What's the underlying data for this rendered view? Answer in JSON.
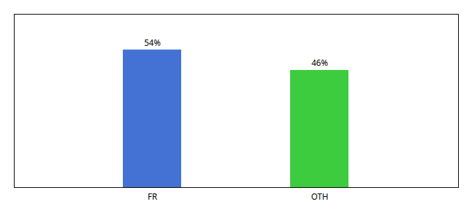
{
  "chart_data": {
    "type": "bar",
    "categories": [
      "FR",
      "OTH"
    ],
    "values": [
      54,
      46
    ],
    "value_labels": [
      "54%",
      "46%"
    ],
    "colors": [
      "#4472d4",
      "#3dcc3d"
    ],
    "ylim": [
      0,
      68
    ],
    "data_labels": true,
    "tick_labels": "x",
    "grid": false
  }
}
